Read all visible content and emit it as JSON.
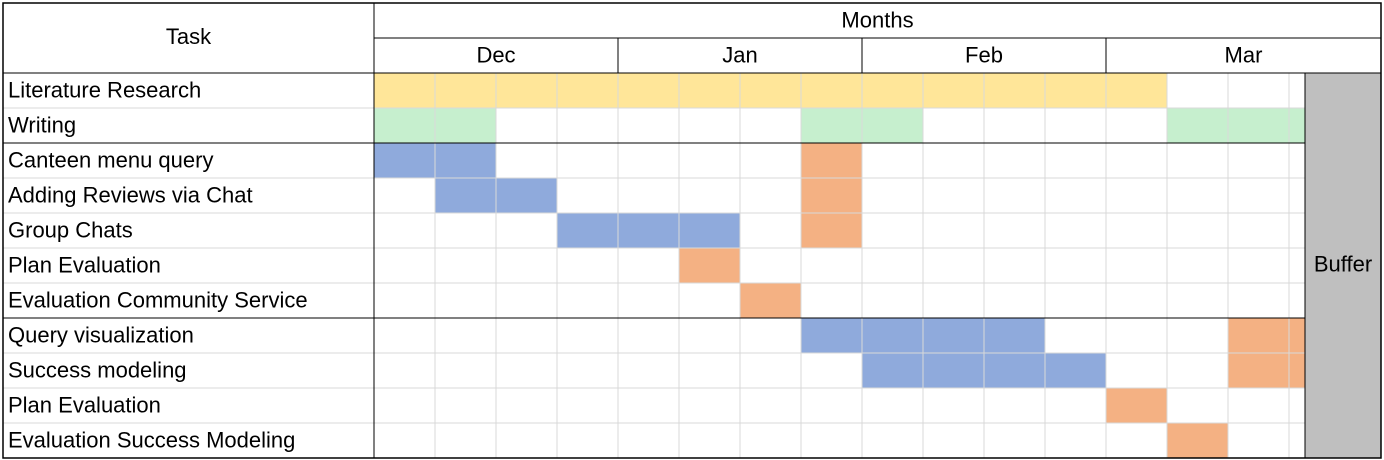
{
  "chart_data": {
    "type": "table",
    "header": {
      "task": "Task",
      "months": "Months"
    },
    "months": [
      {
        "label": "Dec",
        "weeks": 4
      },
      {
        "label": "Jan",
        "weeks": 4
      },
      {
        "label": "Feb",
        "weeks": 4
      },
      {
        "label": "Mar",
        "weeks": 3
      }
    ],
    "buffer": {
      "label": "Buffer",
      "start_week": 15.5,
      "end_week": 16.75,
      "color": "#bfbfbf"
    },
    "colors": {
      "research": "#ffe699",
      "writing": "#c6efce",
      "development": "#8faadc",
      "evaluation": "#f4b183"
    },
    "tasks": [
      {
        "name": "Literature Research",
        "bars": [
          {
            "start": 1,
            "end": 13,
            "color": "research"
          }
        ]
      },
      {
        "name": "Writing",
        "bars": [
          {
            "start": 1,
            "end": 2,
            "color": "writing"
          },
          {
            "start": 8,
            "end": 9,
            "color": "writing"
          },
          {
            "start": 14,
            "end": 15.5,
            "color": "writing"
          }
        ]
      },
      {
        "name": "Canteen menu query",
        "bars": [
          {
            "start": 1,
            "end": 2,
            "color": "development"
          },
          {
            "start": 8,
            "end": 8,
            "color": "evaluation"
          }
        ]
      },
      {
        "name": "Adding Reviews via Chat",
        "bars": [
          {
            "start": 2,
            "end": 3,
            "color": "development"
          },
          {
            "start": 8,
            "end": 8,
            "color": "evaluation"
          }
        ]
      },
      {
        "name": "Group Chats",
        "bars": [
          {
            "start": 4,
            "end": 6,
            "color": "development"
          },
          {
            "start": 8,
            "end": 8,
            "color": "evaluation"
          }
        ]
      },
      {
        "name": "Plan Evaluation",
        "bars": [
          {
            "start": 6,
            "end": 6,
            "color": "evaluation"
          }
        ]
      },
      {
        "name": "Evaluation Community Service",
        "bars": [
          {
            "start": 7,
            "end": 7,
            "color": "evaluation"
          }
        ]
      },
      {
        "name": "Query visualization",
        "bars": [
          {
            "start": 8,
            "end": 11,
            "color": "development"
          },
          {
            "start": 15,
            "end": 15.5,
            "color": "evaluation"
          }
        ]
      },
      {
        "name": "Success modeling",
        "bars": [
          {
            "start": 9,
            "end": 12,
            "color": "development"
          },
          {
            "start": 15,
            "end": 15.5,
            "color": "evaluation"
          }
        ]
      },
      {
        "name": "Plan Evaluation",
        "bars": [
          {
            "start": 13,
            "end": 13,
            "color": "evaluation"
          }
        ]
      },
      {
        "name": "Evaluation Success Modeling",
        "bars": [
          {
            "start": 14,
            "end": 14,
            "color": "evaluation"
          }
        ]
      }
    ],
    "section_breaks_after_task": [
      1,
      6
    ]
  }
}
